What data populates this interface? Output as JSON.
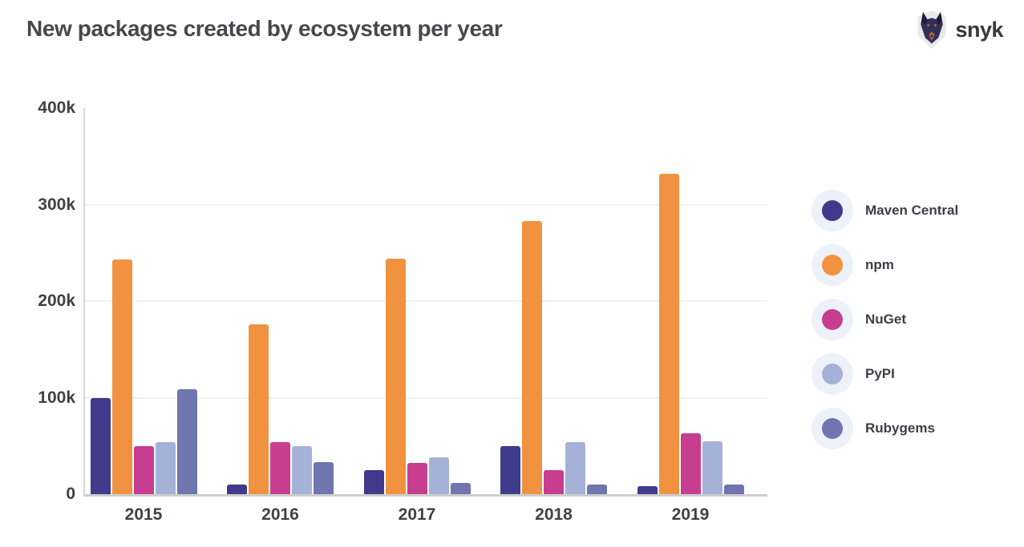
{
  "page": {
    "title": "New packages created by ecosystem per year",
    "brand": "snyk"
  },
  "chart_data": {
    "type": "bar",
    "title": "New packages created by ecosystem per year",
    "unit": "packages",
    "categories": [
      "2015",
      "2016",
      "2017",
      "2018",
      "2019"
    ],
    "series": [
      {
        "name": "Maven Central",
        "color": "#3f3a8b",
        "values": [
          100000,
          10000,
          25000,
          50000,
          8000
        ]
      },
      {
        "name": "npm",
        "color": "#f0923f",
        "values": [
          243000,
          176000,
          244000,
          283000,
          332000
        ]
      },
      {
        "name": "NuGet",
        "color": "#c73e91",
        "values": [
          50000,
          54000,
          32000,
          25000,
          63000
        ]
      },
      {
        "name": "PyPI",
        "color": "#a5b2d7",
        "values": [
          54000,
          50000,
          38000,
          54000,
          55000
        ]
      },
      {
        "name": "Rubygems",
        "color": "#6f75ae",
        "values": [
          109000,
          33000,
          12000,
          10000,
          10000
        ]
      }
    ],
    "ylim": [
      0,
      400000
    ],
    "yticks": [
      {
        "value": 0,
        "label": "0"
      },
      {
        "value": 100000,
        "label": "100k"
      },
      {
        "value": 200000,
        "label": "200k"
      },
      {
        "value": 300000,
        "label": "300k"
      },
      {
        "value": 400000,
        "label": "400k"
      }
    ],
    "grid": "horizontal",
    "legend_position": "right",
    "legend_halo_color": "#edf2fa"
  }
}
